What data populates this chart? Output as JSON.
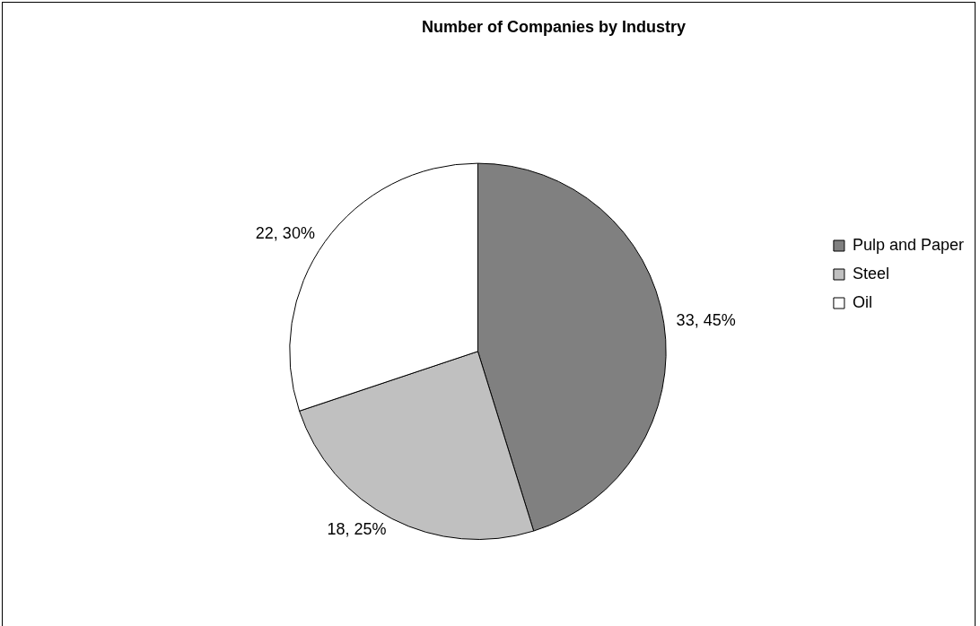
{
  "chart_data": {
    "type": "pie",
    "title": "Number of Companies by Industry",
    "categories": [
      "Pulp and Paper",
      "Steel",
      "Oil"
    ],
    "values": [
      33,
      18,
      22
    ],
    "colors": [
      "#808080",
      "#c0c0c0",
      "#ffffff"
    ],
    "value_labels": [
      "33, 45%",
      "18, 25%",
      "22, 30%"
    ],
    "legend": "right"
  }
}
